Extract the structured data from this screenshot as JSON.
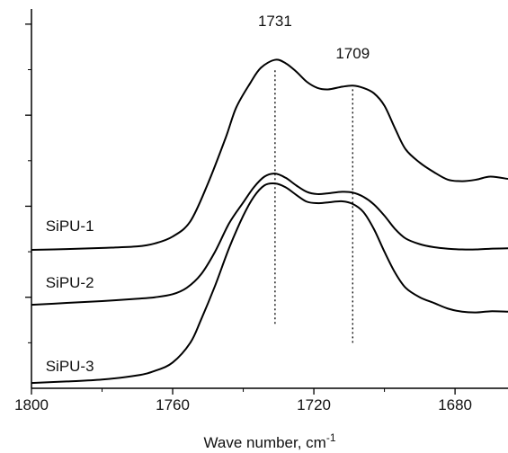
{
  "chart_data": {
    "type": "line",
    "title": "",
    "xlabel": "Wave number, cm",
    "xlabel_superscript": "-1",
    "ylabel": "",
    "xlim": [
      1800,
      1665
    ],
    "x_reversed": true,
    "ylim": [
      0,
      100
    ],
    "y_ticks_labeled": false,
    "grid": false,
    "x_ticks": [
      1800,
      1760,
      1720,
      1680
    ],
    "x_tick_labels": [
      "1800",
      "1760",
      "1720",
      "1680"
    ],
    "series": [
      {
        "name": "SiPU-1",
        "x": [
          1800,
          1790,
          1780,
          1770,
          1765,
          1760,
          1755,
          1750,
          1745,
          1742,
          1738,
          1735,
          1731,
          1728,
          1725,
          1722,
          1719,
          1716,
          1712,
          1709,
          1706,
          1703,
          1700,
          1697,
          1694,
          1690,
          1686,
          1682,
          1678,
          1674,
          1670,
          1665
        ],
        "y": [
          36.5,
          36.7,
          37.0,
          37.4,
          38.2,
          40.0,
          44.0,
          54.0,
          66.0,
          74.0,
          80.5,
          84.5,
          86.6,
          85.7,
          83.5,
          80.8,
          79.2,
          78.8,
          79.5,
          79.8,
          79.2,
          77.8,
          74.5,
          68.5,
          63.0,
          59.5,
          57.0,
          55.0,
          54.6,
          55.0,
          55.8,
          55.2
        ]
      },
      {
        "name": "SiPU-2",
        "x": [
          1800,
          1790,
          1780,
          1770,
          1765,
          1760,
          1756,
          1752,
          1748,
          1744,
          1740,
          1737,
          1734,
          1731,
          1728,
          1725,
          1722,
          1719,
          1716,
          1712,
          1709,
          1706,
          1703,
          1700,
          1697,
          1694,
          1690,
          1686,
          1682,
          1678,
          1674,
          1670,
          1665
        ],
        "y": [
          22.0,
          22.5,
          23.0,
          23.6,
          24.0,
          24.8,
          26.5,
          30.0,
          36.0,
          43.5,
          49.0,
          53.0,
          55.8,
          56.6,
          55.5,
          53.5,
          51.8,
          51.2,
          51.4,
          51.8,
          51.6,
          50.5,
          48.5,
          45.5,
          42.0,
          39.5,
          38.0,
          37.2,
          36.8,
          36.6,
          36.6,
          36.8,
          36.9
        ]
      },
      {
        "name": "SiPU-3",
        "x": [
          1800,
          1790,
          1780,
          1770,
          1765,
          1760,
          1755,
          1752,
          1748,
          1744,
          1740,
          1737,
          1734,
          1731,
          1728,
          1725,
          1722,
          1719,
          1716,
          1712,
          1709,
          1706,
          1703,
          1700,
          1697,
          1694,
          1690,
          1686,
          1682,
          1678,
          1674,
          1670,
          1665
        ],
        "y": [
          1.4,
          1.8,
          2.3,
          3.4,
          4.6,
          6.8,
          12.0,
          18.0,
          27.0,
          37.0,
          45.5,
          50.5,
          53.5,
          54.0,
          53.0,
          51.0,
          49.2,
          48.8,
          49.0,
          49.3,
          48.6,
          46.5,
          42.0,
          36.0,
          30.5,
          26.5,
          24.0,
          22.5,
          21.0,
          20.2,
          20.0,
          20.3,
          20.2
        ]
      }
    ],
    "series_labels": [
      {
        "text": "SiPU-1",
        "x": 1796,
        "y": 41.5
      },
      {
        "text": "SiPU-2",
        "x": 1796,
        "y": 26.5
      },
      {
        "text": "SiPU-3",
        "x": 1796,
        "y": 4.5
      }
    ],
    "annotations": [
      {
        "text": "1731",
        "x": 1731,
        "line_from": 17.0,
        "line_to": 84.5,
        "label_y": 95.5
      },
      {
        "text": "1709",
        "x": 1709,
        "line_from": 12.0,
        "line_to": 79.0,
        "label_y": 87.0
      }
    ]
  }
}
